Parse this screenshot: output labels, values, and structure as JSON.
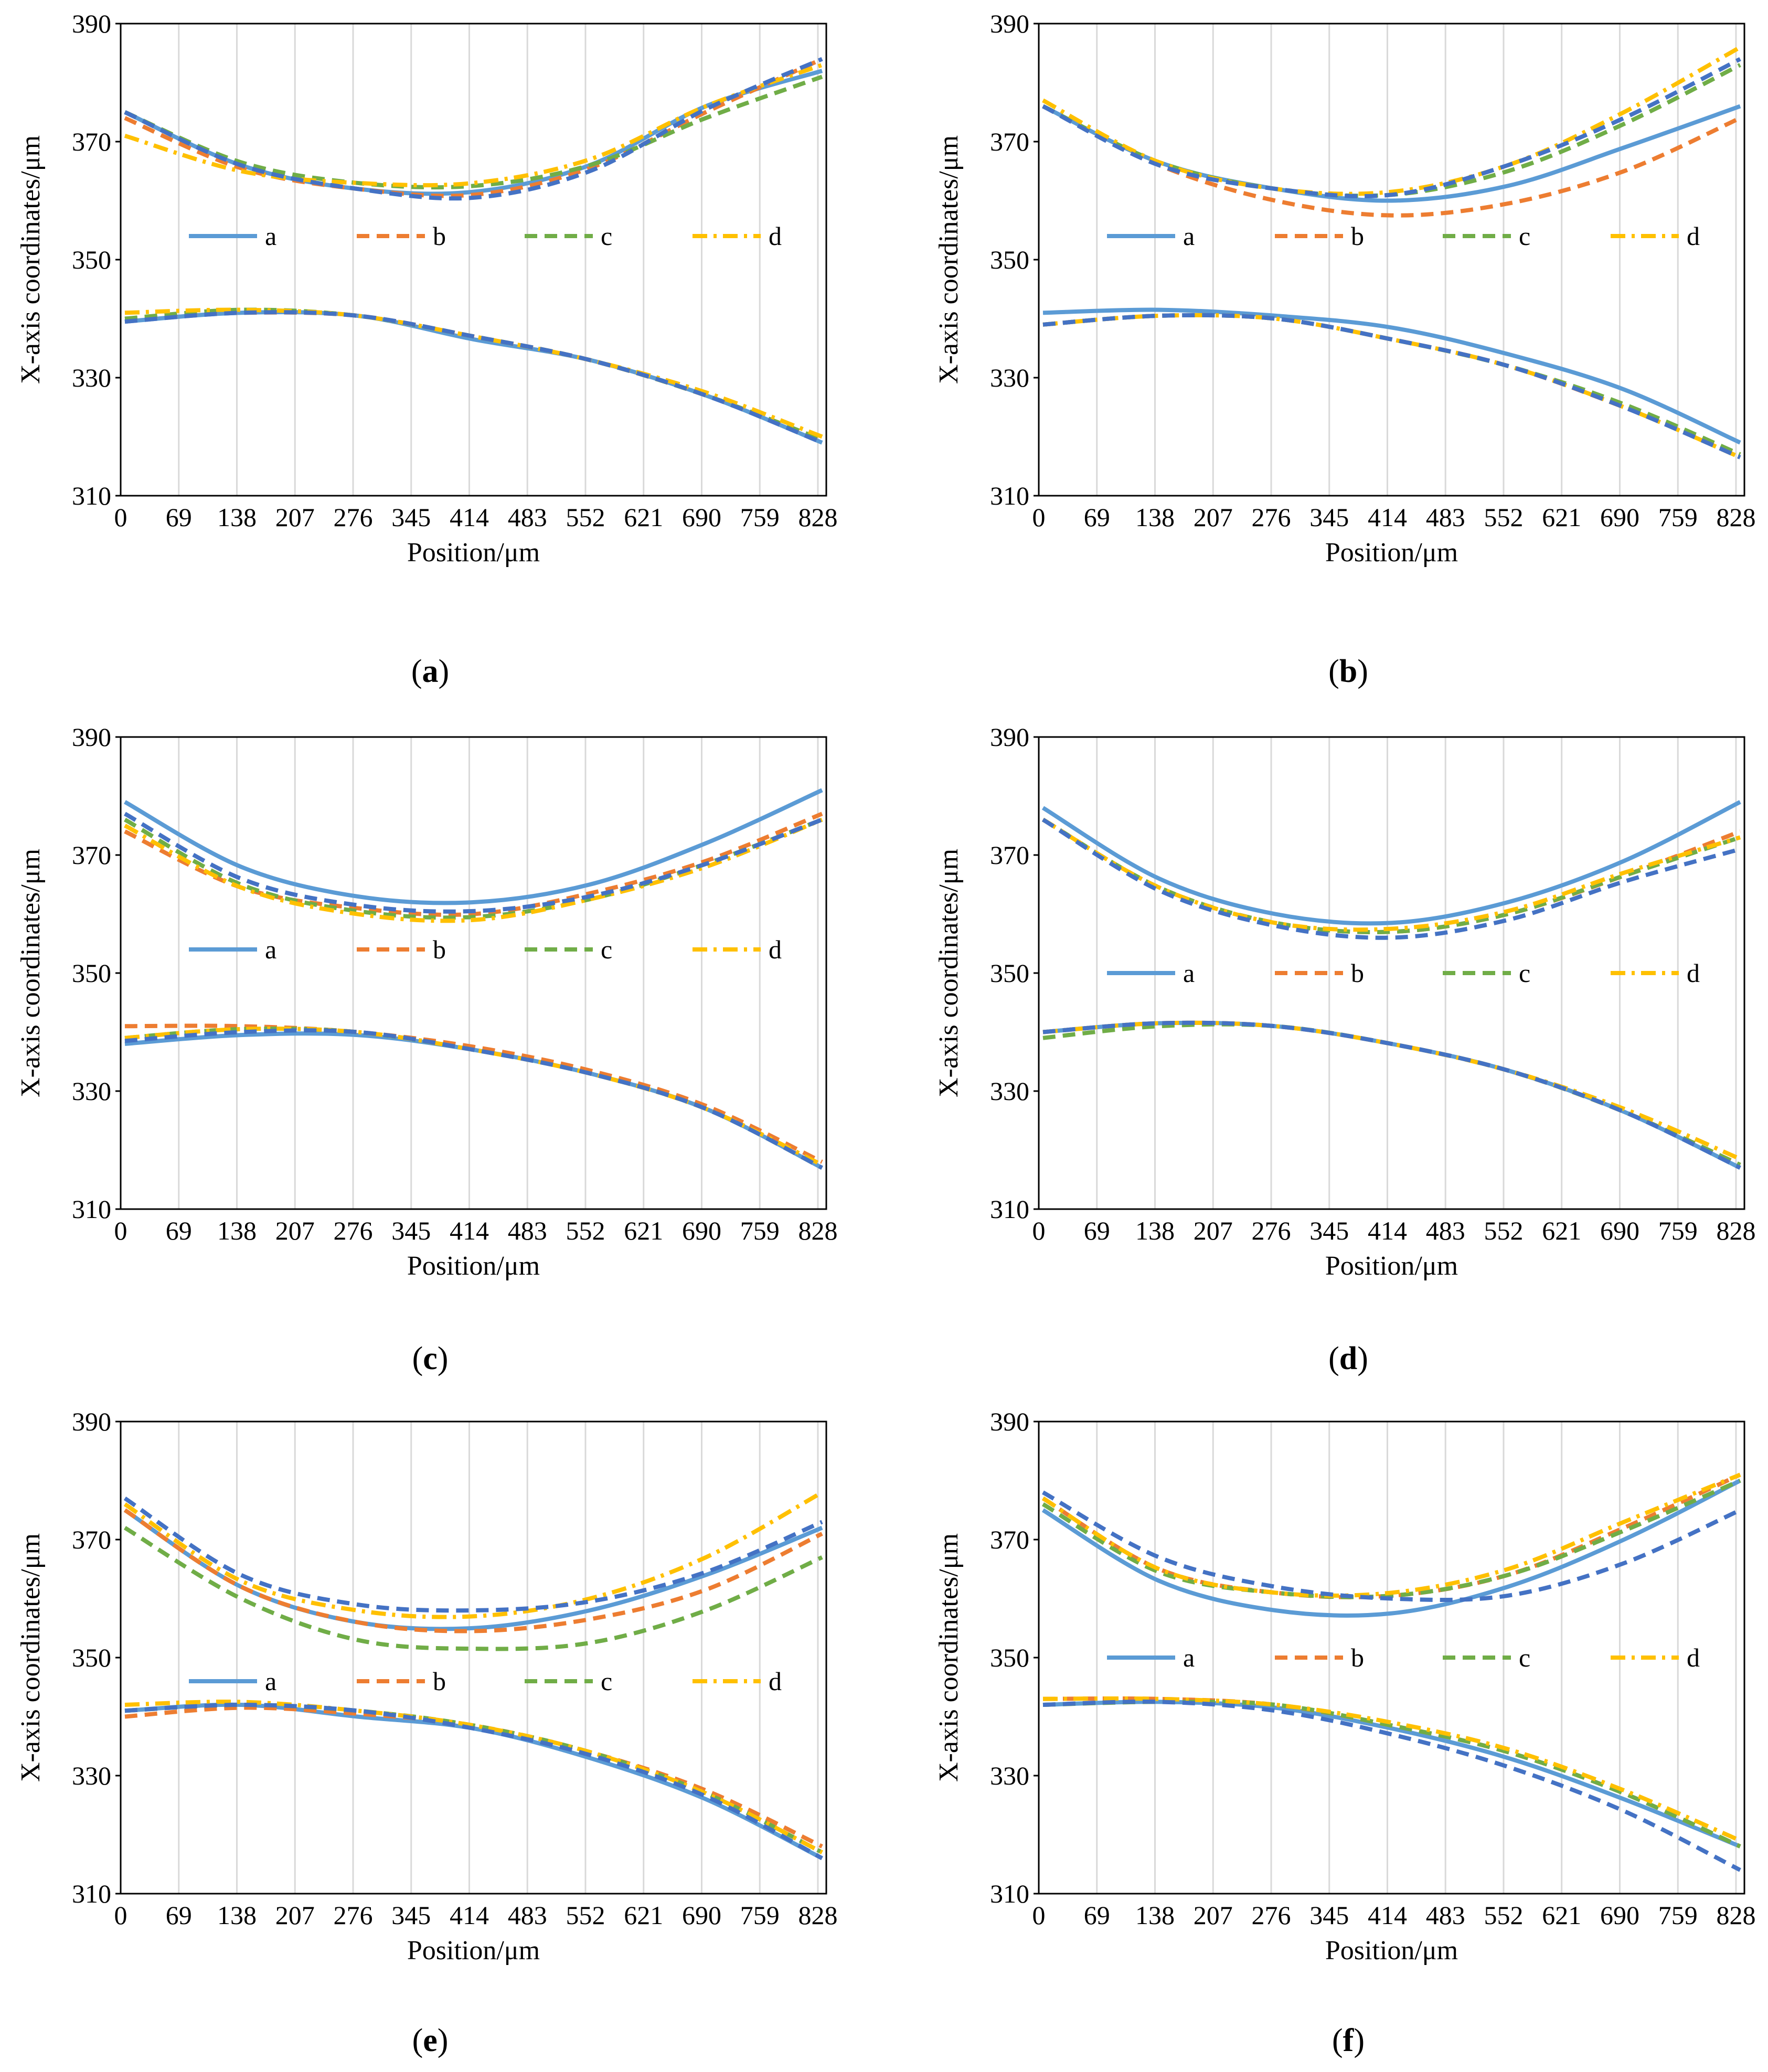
{
  "figure": {
    "panel_labels": [
      "a",
      "b",
      "c",
      "d",
      "e",
      "f"
    ]
  },
  "colors": {
    "a": "#5B9BD5",
    "b": "#ED7D31",
    "c": "#70AD47",
    "d": "#FFC000",
    "dark_blue": "#4472C4",
    "grid": "#d9d9d9",
    "axis": "#000000"
  },
  "chart_data": [
    {
      "type": "line",
      "panel": "a",
      "xlabel": "Position/μm",
      "ylabel": "X-axis coordinates/μm",
      "xlim": [
        0,
        838
      ],
      "ylim": [
        310,
        390
      ],
      "xticks": [
        0,
        69,
        138,
        207,
        276,
        345,
        414,
        483,
        552,
        621,
        690,
        759,
        828
      ],
      "yticks": [
        310,
        330,
        350,
        370,
        390
      ],
      "legend": [
        "a",
        "b",
        "c",
        "d"
      ],
      "legend_y": 354,
      "series": [
        {
          "name": "a",
          "style": "solid",
          "upper": [
            375,
            366,
            362,
            361.5,
            366,
            376,
            382
          ],
          "lower": [
            339.5,
            341,
            340.5,
            336.5,
            333,
            327,
            319
          ]
        },
        {
          "name": "b",
          "style": "dashed",
          "upper": [
            374,
            365.5,
            362,
            361,
            365.5,
            375,
            384
          ],
          "lower": [
            340,
            341,
            340.5,
            337,
            333,
            327,
            319.5
          ]
        },
        {
          "name": "c",
          "style": "dashed",
          "upper": [
            375,
            366.5,
            363,
            362.5,
            366,
            374,
            381
          ],
          "lower": [
            340,
            341.5,
            340.5,
            337,
            333,
            327,
            319.5
          ]
        },
        {
          "name": "d",
          "style": "dashdot",
          "upper": [
            371,
            365,
            363,
            363,
            367,
            376,
            383
          ],
          "lower": [
            341,
            341.5,
            340.5,
            337,
            333,
            327.5,
            320
          ]
        },
        {
          "name": "dark",
          "style": "dashed",
          "upper": [
            375,
            366,
            362,
            360.5,
            365,
            375.5,
            384
          ],
          "lower": [
            339.5,
            341,
            340.5,
            337,
            333,
            327,
            319
          ]
        }
      ]
    },
    {
      "type": "line",
      "panel": "b",
      "xlabel": "Position/μm",
      "ylabel": "X-axis coordinates/μm",
      "xlim": [
        0,
        838
      ],
      "ylim": [
        310,
        390
      ],
      "xticks": [
        0,
        69,
        138,
        207,
        276,
        345,
        414,
        483,
        552,
        621,
        690,
        759,
        828
      ],
      "yticks": [
        310,
        330,
        350,
        370,
        390
      ],
      "legend": [
        "a",
        "b",
        "c",
        "d"
      ],
      "legend_y": 354,
      "series": [
        {
          "name": "a",
          "style": "solid",
          "upper": [
            376,
            366.5,
            362,
            360,
            362.5,
            369,
            376
          ],
          "lower": [
            341,
            341.5,
            340.5,
            338.5,
            334,
            328,
            319
          ]
        },
        {
          "name": "b",
          "style": "dashed",
          "upper": [
            376,
            366,
            360,
            357.5,
            359.5,
            365,
            374
          ],
          "lower": [
            339,
            340.5,
            340,
            336.5,
            332,
            325,
            317
          ]
        },
        {
          "name": "c",
          "style": "dashed",
          "upper": [
            376,
            366.5,
            362,
            361,
            365,
            373,
            383
          ],
          "lower": [
            339,
            340.5,
            340,
            336.5,
            332,
            325.5,
            317
          ]
        },
        {
          "name": "d",
          "style": "dashdot",
          "upper": [
            377,
            366.5,
            362,
            361.5,
            366,
            375,
            386
          ],
          "lower": [
            339,
            340.5,
            340,
            336.5,
            332,
            325,
            316.5
          ]
        },
        {
          "name": "dark",
          "style": "dashed",
          "upper": [
            376,
            366,
            362,
            361,
            366,
            374,
            384
          ],
          "lower": [
            339,
            340.5,
            340,
            336.5,
            332,
            325,
            316.5
          ]
        }
      ]
    },
    {
      "type": "line",
      "panel": "c",
      "xlabel": "Position/μm",
      "ylabel": "X-axis coordinates/μm",
      "xlim": [
        0,
        838
      ],
      "ylim": [
        310,
        390
      ],
      "xticks": [
        0,
        69,
        138,
        207,
        276,
        345,
        414,
        483,
        552,
        621,
        690,
        759,
        828
      ],
      "yticks": [
        310,
        330,
        350,
        370,
        390
      ],
      "legend": [
        "a",
        "b",
        "c",
        "d"
      ],
      "legend_y": 354,
      "series": [
        {
          "name": "a",
          "style": "solid",
          "upper": [
            379,
            368,
            363,
            362,
            365,
            372,
            381
          ],
          "lower": [
            338,
            339.5,
            339.5,
            337,
            333,
            327,
            317
          ]
        },
        {
          "name": "b",
          "style": "dashed",
          "upper": [
            374,
            364.5,
            361,
            360,
            363.5,
            369,
            377
          ],
          "lower": [
            341,
            341,
            340,
            337.5,
            333.5,
            327.5,
            318
          ]
        },
        {
          "name": "c",
          "style": "dashed",
          "upper": [
            376,
            365,
            360.5,
            359.5,
            362.5,
            368.5,
            376
          ],
          "lower": [
            339,
            340.5,
            340,
            337,
            333,
            327,
            317
          ]
        },
        {
          "name": "d",
          "style": "dashdot",
          "upper": [
            375,
            364.5,
            360,
            359,
            362.5,
            368,
            376
          ],
          "lower": [
            339,
            340.5,
            340,
            337,
            333,
            327,
            317.5
          ]
        },
        {
          "name": "dark",
          "style": "dashed",
          "upper": [
            377,
            366,
            361.5,
            360.5,
            363,
            368.5,
            376
          ],
          "lower": [
            338.5,
            340,
            340,
            337,
            333,
            327,
            317
          ]
        }
      ]
    },
    {
      "type": "line",
      "panel": "d",
      "xlabel": "Position/μm",
      "ylabel": "X-axis coordinates/μm",
      "xlim": [
        0,
        838
      ],
      "ylim": [
        310,
        390
      ],
      "xticks": [
        0,
        69,
        138,
        207,
        276,
        345,
        414,
        483,
        552,
        621,
        690,
        759,
        828
      ],
      "yticks": [
        310,
        330,
        350,
        370,
        390
      ],
      "legend": [
        "a",
        "b",
        "c",
        "d"
      ],
      "legend_y": 350,
      "series": [
        {
          "name": "a",
          "style": "solid",
          "upper": [
            378,
            366,
            360,
            358.5,
            362,
            369,
            379
          ],
          "lower": [
            340,
            341.5,
            341,
            338,
            333.5,
            326.5,
            317
          ]
        },
        {
          "name": "b",
          "style": "dashed",
          "upper": [
            376,
            364.5,
            358.5,
            357,
            360,
            366.5,
            374
          ],
          "lower": [
            340,
            341.5,
            341,
            338,
            333.5,
            326.5,
            317.5
          ]
        },
        {
          "name": "c",
          "style": "dashed",
          "upper": [
            376,
            364.5,
            358.5,
            357,
            360,
            366.5,
            373
          ],
          "lower": [
            339,
            341,
            341,
            338,
            333.5,
            326.5,
            317.5
          ]
        },
        {
          "name": "d",
          "style": "dashdot",
          "upper": [
            376,
            364.5,
            358.5,
            357.5,
            360.5,
            367,
            373
          ],
          "lower": [
            340,
            341.5,
            341,
            338,
            333.5,
            327,
            318.5
          ]
        },
        {
          "name": "dark",
          "style": "dashed",
          "upper": [
            376,
            364,
            358,
            356,
            359,
            365.5,
            371
          ],
          "lower": [
            340,
            341.5,
            341,
            338,
            333.5,
            326.5,
            317
          ]
        }
      ]
    },
    {
      "type": "line",
      "panel": "e",
      "xlabel": "Position/μm",
      "ylabel": "X-axis coordinates/μm",
      "xlim": [
        0,
        838
      ],
      "ylim": [
        310,
        390
      ],
      "xticks": [
        0,
        69,
        138,
        207,
        276,
        345,
        414,
        483,
        552,
        621,
        690,
        759,
        828
      ],
      "yticks": [
        310,
        330,
        350,
        370,
        390
      ],
      "legend": [
        "a",
        "b",
        "c",
        "d"
      ],
      "legend_y": 346,
      "series": [
        {
          "name": "a",
          "style": "solid",
          "upper": [
            375,
            362,
            356,
            355,
            358,
            364,
            372
          ],
          "lower": [
            341,
            342,
            340,
            338,
            333,
            326,
            316
          ]
        },
        {
          "name": "b",
          "style": "dashed",
          "upper": [
            375,
            362,
            356,
            354.5,
            356.5,
            361.5,
            371
          ],
          "lower": [
            340,
            341.5,
            340.5,
            338.5,
            334,
            327.5,
            318
          ]
        },
        {
          "name": "c",
          "style": "dashed",
          "upper": [
            372,
            360,
            353,
            351.5,
            352.5,
            358,
            367
          ],
          "lower": [
            341,
            342,
            341,
            338.5,
            334,
            327,
            317
          ]
        },
        {
          "name": "d",
          "style": "dashdot",
          "upper": [
            376,
            363,
            358,
            357,
            360,
            367,
            378
          ],
          "lower": [
            342,
            342.5,
            341,
            338.5,
            334,
            327,
            317
          ]
        },
        {
          "name": "dark",
          "style": "dashed",
          "upper": [
            377,
            364,
            359,
            358,
            359.5,
            364.5,
            373
          ],
          "lower": [
            341,
            342,
            341,
            338,
            333.5,
            326.5,
            316
          ]
        }
      ]
    },
    {
      "type": "line",
      "panel": "f",
      "xlabel": "Position/μm",
      "ylabel": "X-axis coordinates/μm",
      "xlim": [
        0,
        838
      ],
      "ylim": [
        310,
        390
      ],
      "xticks": [
        0,
        69,
        138,
        207,
        276,
        345,
        414,
        483,
        552,
        621,
        690,
        759,
        828
      ],
      "yticks": [
        310,
        330,
        350,
        370,
        390
      ],
      "legend": [
        "a",
        "b",
        "c",
        "d"
      ],
      "legend_y": 350,
      "series": [
        {
          "name": "a",
          "style": "solid",
          "upper": [
            375,
            363,
            358,
            357.5,
            362,
            370,
            380
          ],
          "lower": [
            342,
            342.5,
            341.5,
            338,
            333,
            326,
            318
          ]
        },
        {
          "name": "b",
          "style": "dashed",
          "upper": [
            377,
            365,
            361,
            360.5,
            364,
            372,
            381
          ],
          "lower": [
            343,
            343,
            342,
            338.5,
            334,
            327,
            318
          ]
        },
        {
          "name": "c",
          "style": "dashed",
          "upper": [
            376,
            364.5,
            361,
            360.5,
            364,
            371.5,
            380
          ],
          "lower": [
            342,
            342.5,
            342,
            338.5,
            334,
            327,
            318
          ]
        },
        {
          "name": "d",
          "style": "dashdot",
          "upper": [
            377,
            365,
            361,
            361,
            365,
            373,
            381
          ],
          "lower": [
            343,
            343,
            342,
            339,
            334.5,
            327.5,
            319
          ]
        },
        {
          "name": "dark",
          "style": "dashed",
          "upper": [
            378,
            367,
            362,
            360,
            360.5,
            366,
            375
          ],
          "lower": [
            342,
            342.5,
            341,
            337,
            331.5,
            324,
            314
          ]
        }
      ]
    }
  ]
}
